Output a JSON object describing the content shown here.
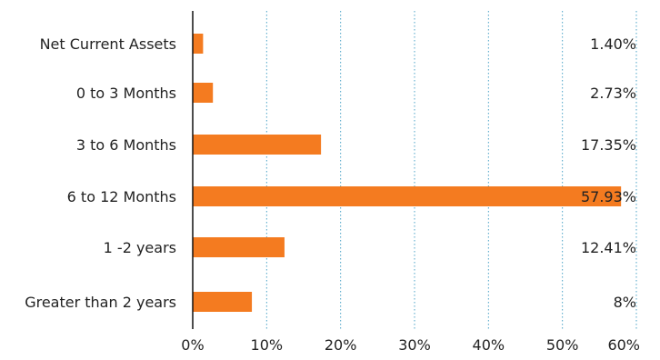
{
  "chart_data": {
    "type": "bar",
    "orientation": "horizontal",
    "categories": [
      "Net Current Assets",
      "0 to 3 Months",
      "3 to 6 Months",
      "6 to 12 Months",
      "1 -2 years",
      "Greater than 2 years"
    ],
    "values": [
      1.4,
      2.73,
      17.35,
      57.93,
      12.41,
      8
    ],
    "value_labels": [
      "1.40%",
      "2.73%",
      "17.35%",
      "57.93%",
      "12.41%",
      "8%"
    ],
    "x_ticks": [
      0,
      10,
      20,
      30,
      40,
      50,
      60
    ],
    "x_tick_labels": [
      "0%",
      "10%",
      "20%",
      "30%",
      "40%",
      "50%",
      "60%"
    ],
    "xlim": [
      0,
      60
    ],
    "grid": "vertical dotted",
    "legend": "none",
    "colors": {
      "bar": "#F47B20",
      "grid": "#4BA3C7",
      "axis": "#111111",
      "text": "#222222"
    }
  }
}
